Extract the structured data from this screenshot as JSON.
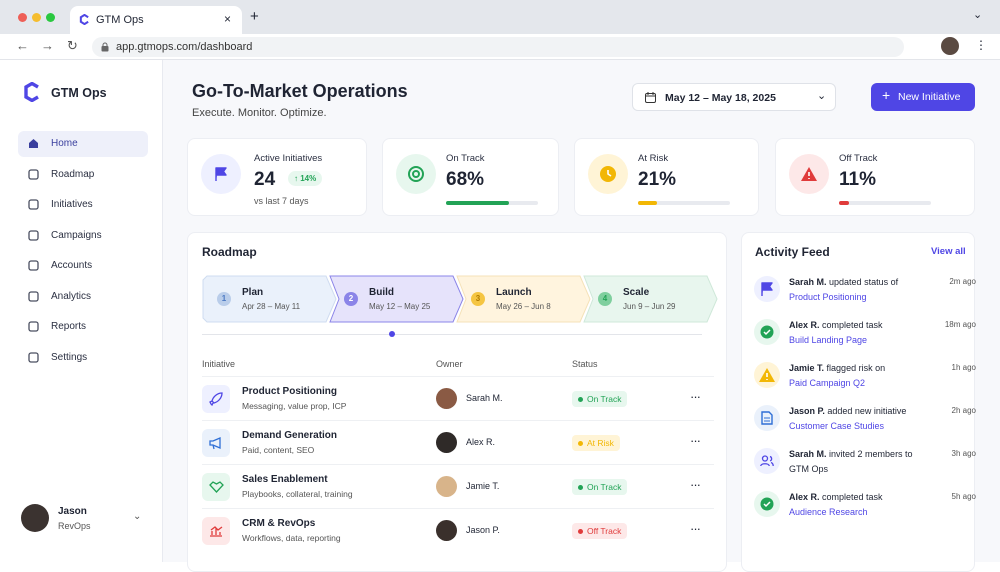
{
  "browser": {
    "tab_title": "GTM Ops",
    "url": "app.gtmops.com/dashboard"
  },
  "sidebar": {
    "brand": "GTM Ops",
    "nav": [
      "Home",
      "Roadmap",
      "Initiatives",
      "Campaigns",
      "Accounts",
      "Analytics",
      "Reports",
      "Settings"
    ],
    "user": {
      "name": "Jason",
      "role": "RevOps"
    }
  },
  "header": {
    "title": "Go-To-Market Operations",
    "subtitle": "Execute. Monitor. Optimize.",
    "date_range": "May 12 – May 18, 2025",
    "button": "New Initiative"
  },
  "stats": [
    {
      "label": "Active Initiatives",
      "value": "24",
      "change": "14%",
      "note": "vs last 7 days"
    },
    {
      "label": "On Track",
      "value": "68%"
    },
    {
      "label": "At Risk",
      "value": "21%"
    },
    {
      "label": "Off Track",
      "value": "11%"
    }
  ],
  "roadmap": {
    "title": "Roadmap",
    "stages": [
      {
        "step": "1",
        "name": "Plan",
        "dates": "Apr 28 – May 11"
      },
      {
        "step": "2",
        "name": "Build",
        "dates": "May 12 – May 25"
      },
      {
        "step": "3",
        "name": "Launch",
        "dates": "May 26 – Jun 8"
      },
      {
        "step": "4",
        "name": "Scale",
        "dates": "Jun 9 – Jun 29"
      }
    ],
    "columns": [
      "Initiative",
      "Owner",
      "Status"
    ],
    "rows": [
      {
        "name": "Product Positioning",
        "detail": "Messaging, value prop, ICP",
        "owner": "Sarah M.",
        "status": "On Track"
      },
      {
        "name": "Demand Generation",
        "detail": "Paid, content, SEO",
        "owner": "Alex R.",
        "status": "At Risk"
      },
      {
        "name": "Sales Enablement",
        "detail": "Playbooks, collateral, training",
        "owner": "Jamie T.",
        "status": "On Track"
      },
      {
        "name": "CRM & RevOps",
        "detail": "Workflows, data, reporting",
        "owner": "Jason P.",
        "status": "Off Track"
      }
    ]
  },
  "activity": {
    "title": "Activity Feed",
    "link": "View all",
    "items": [
      {
        "actor": "Sarah M.",
        "action": "updated status of",
        "target": "Product Positioning",
        "time": "2m ago"
      },
      {
        "actor": "Alex R.",
        "action": "completed task",
        "target": "Build Landing Page",
        "time": "18m ago"
      },
      {
        "actor": "Jamie T.",
        "action": "flagged risk on",
        "target": "Paid Campaign Q2",
        "time": "1h ago"
      },
      {
        "actor": "Jason P.",
        "action": "added new initiative",
        "target": "Customer Case Studies",
        "time": "2h ago"
      },
      {
        "actor": "Sarah M.",
        "action": "invited 2 members to GTM Ops",
        "time": "3h ago"
      },
      {
        "actor": "Alex R.",
        "action": "completed task",
        "target": "Audience Research",
        "time": "5h ago"
      }
    ]
  }
}
